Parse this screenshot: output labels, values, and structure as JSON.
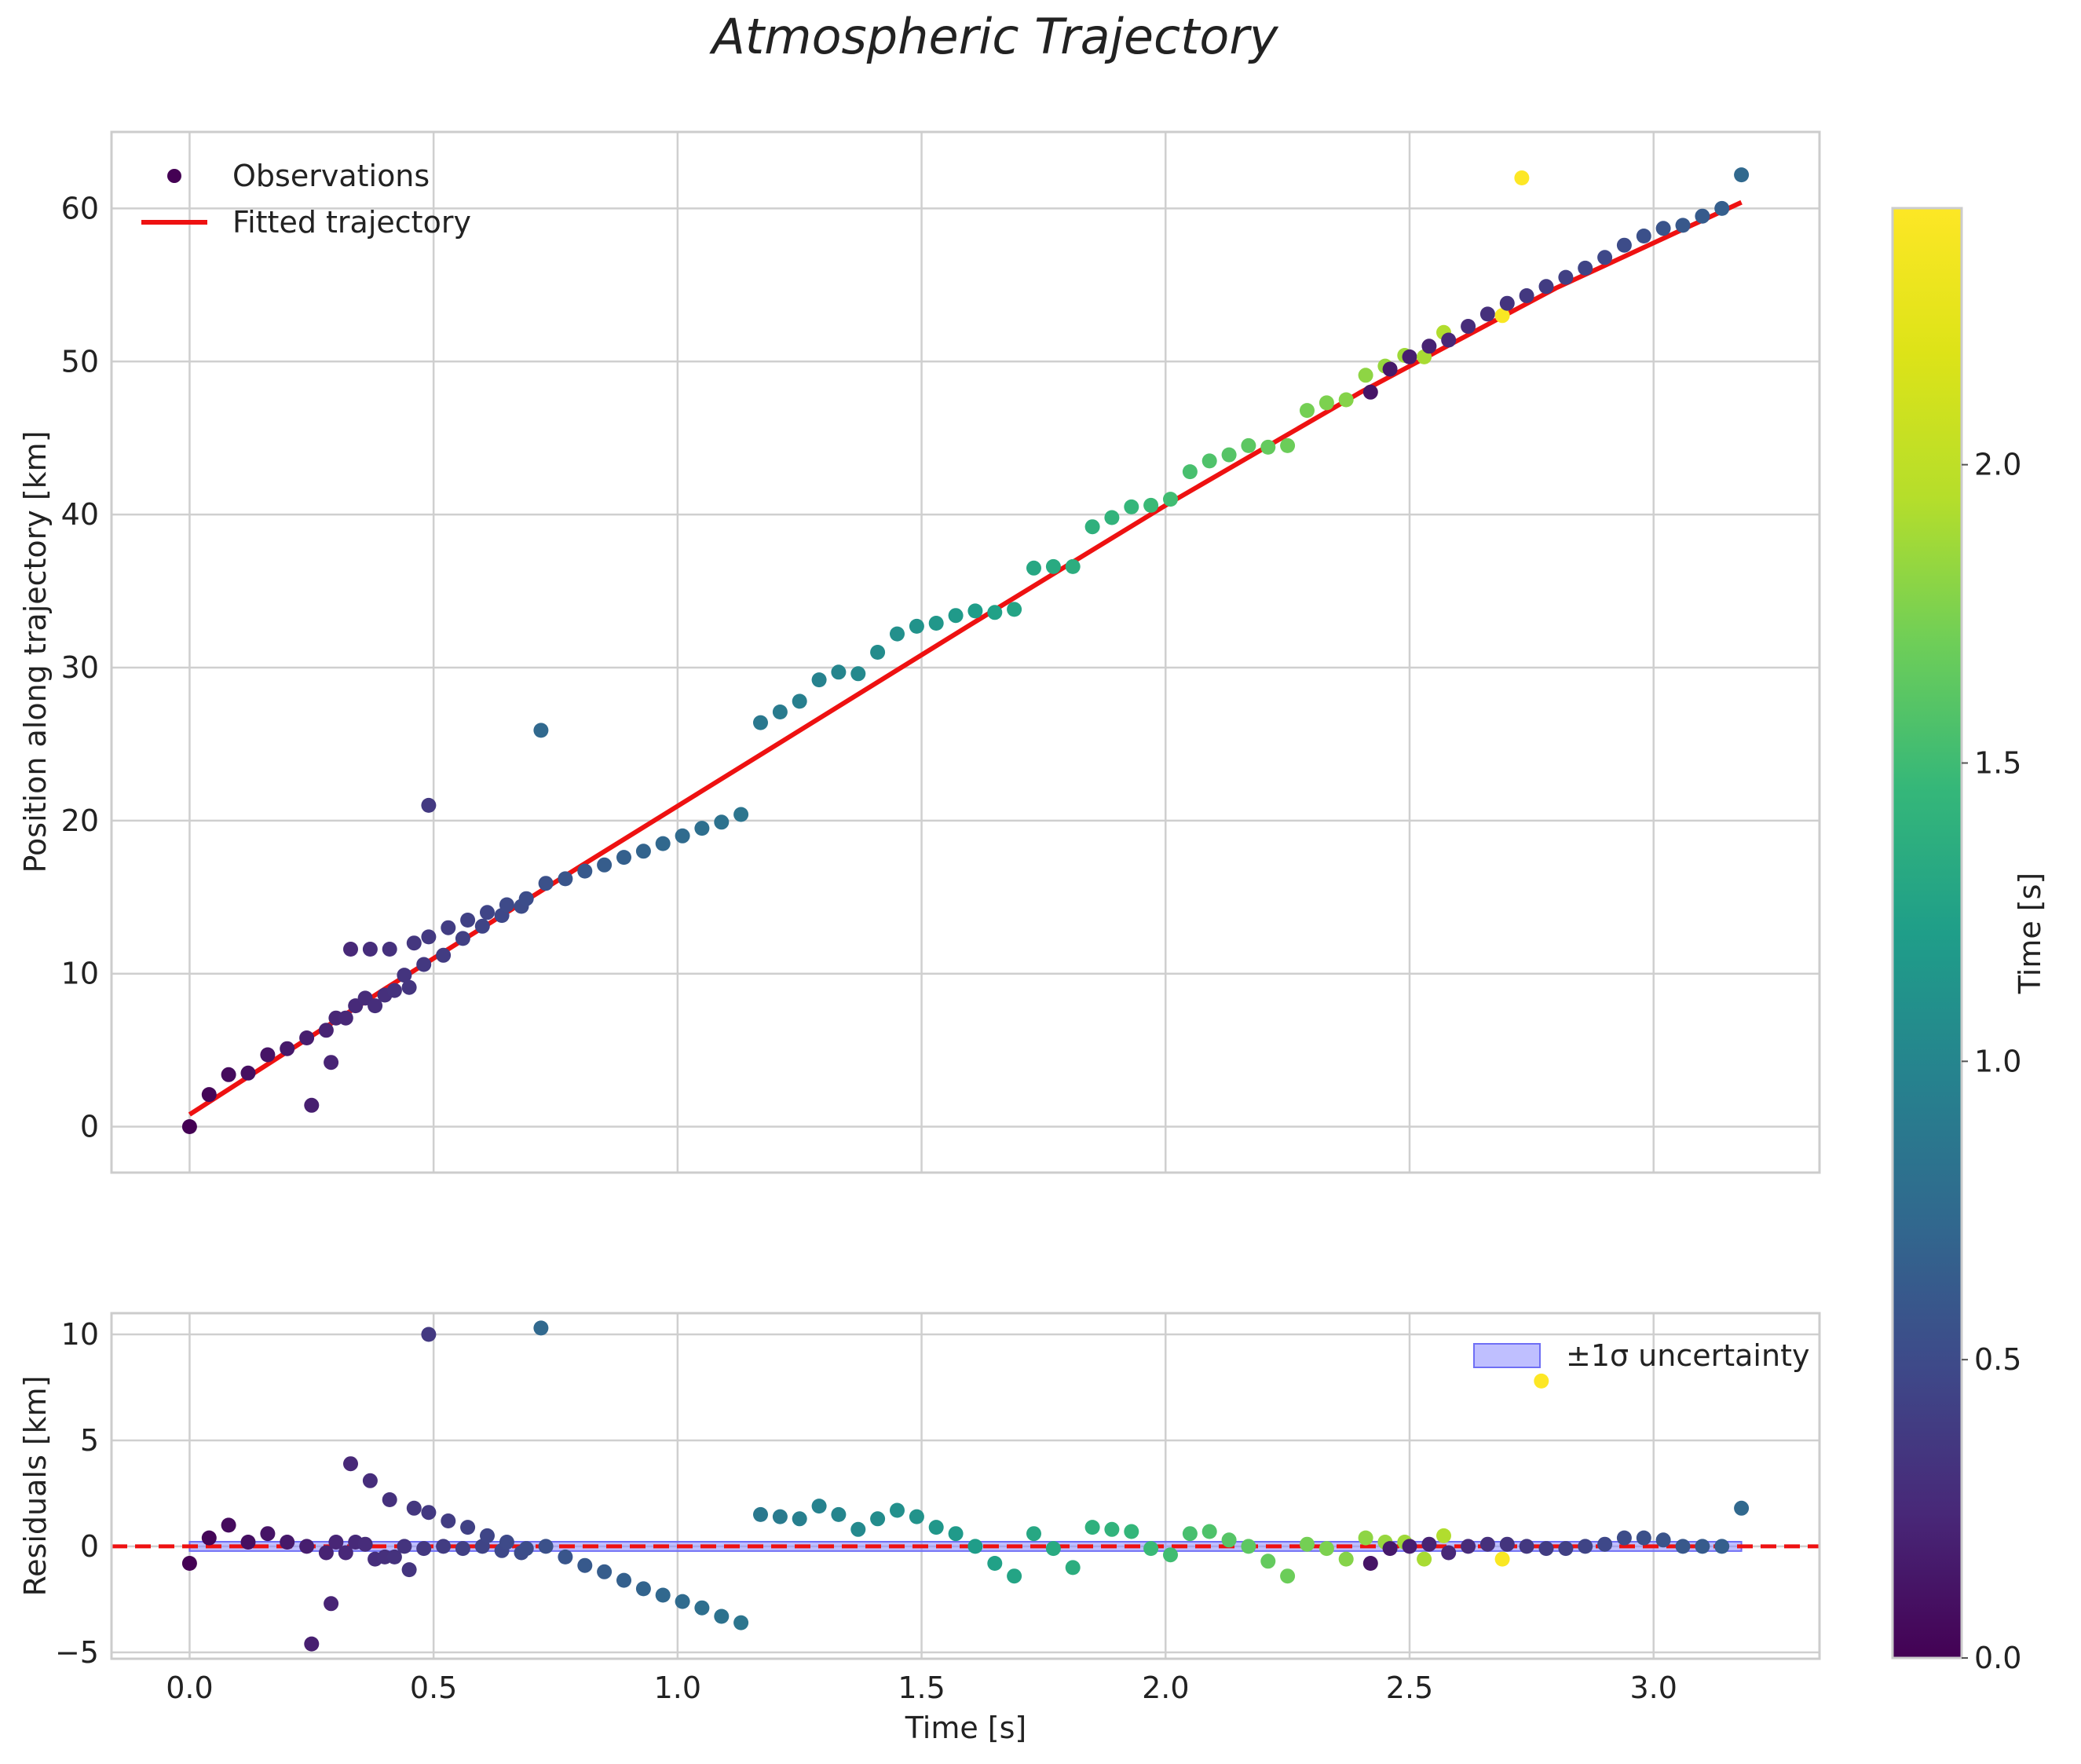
{
  "chart_data": {
    "type": "scatter",
    "title": "Atmospheric Trajectory",
    "xlabel": "Time [s]",
    "colorbar": {
      "label": "Time [s]",
      "range": [
        0,
        2.43
      ],
      "ticks": [
        0.0,
        0.5,
        1.0,
        1.5,
        2.0
      ],
      "tick_labels": [
        "0.0",
        "0.5",
        "1.0",
        "1.5",
        "2.0"
      ],
      "colormap": "viridis"
    },
    "panels": [
      {
        "id": "main",
        "ylabel": "Position along trajectory [km]",
        "xlim": [
          -0.16,
          3.34
        ],
        "ylim": [
          -3,
          65
        ],
        "xticks": [
          0.0,
          0.5,
          1.0,
          1.5,
          2.0,
          2.5,
          3.0
        ],
        "yticks": [
          0,
          10,
          20,
          30,
          40,
          50,
          60
        ],
        "grid": true,
        "legend": {
          "position": "top-left",
          "entries": [
            "Observations",
            "Fitted trajectory"
          ]
        },
        "fit_line": {
          "name": "Fitted trajectory",
          "color": "#ee1111",
          "x": [
            0.0,
            0.4,
            0.8,
            1.2,
            1.6,
            2.0,
            2.4,
            2.8,
            3.18
          ],
          "y": [
            0.8,
            9.0,
            17.0,
            24.9,
            32.8,
            40.6,
            48.0,
            54.8,
            60.4
          ]
        },
        "series_name": "Observations",
        "points": [
          [
            0.0,
            0.0,
            0.0
          ],
          [
            0.04,
            2.1,
            0.03
          ],
          [
            0.08,
            3.4,
            0.06
          ],
          [
            0.12,
            3.5,
            0.09
          ],
          [
            0.16,
            4.7,
            0.12
          ],
          [
            0.2,
            5.1,
            0.15
          ],
          [
            0.24,
            5.8,
            0.18
          ],
          [
            0.25,
            1.4,
            0.19
          ],
          [
            0.28,
            6.3,
            0.21
          ],
          [
            0.29,
            4.2,
            0.22
          ],
          [
            0.3,
            7.1,
            0.23
          ],
          [
            0.32,
            7.1,
            0.24
          ],
          [
            0.33,
            11.6,
            0.25
          ],
          [
            0.34,
            7.9,
            0.26
          ],
          [
            0.36,
            8.4,
            0.27
          ],
          [
            0.37,
            11.6,
            0.28
          ],
          [
            0.38,
            7.9,
            0.29
          ],
          [
            0.4,
            8.6,
            0.3
          ],
          [
            0.41,
            11.6,
            0.31
          ],
          [
            0.42,
            8.9,
            0.32
          ],
          [
            0.44,
            9.9,
            0.33
          ],
          [
            0.45,
            9.1,
            0.34
          ],
          [
            0.46,
            12.0,
            0.35
          ],
          [
            0.48,
            10.6,
            0.36
          ],
          [
            0.49,
            12.4,
            0.37
          ],
          [
            0.49,
            21.0,
            0.37
          ],
          [
            0.52,
            11.2,
            0.39
          ],
          [
            0.53,
            13.0,
            0.4
          ],
          [
            0.56,
            12.3,
            0.42
          ],
          [
            0.57,
            13.5,
            0.43
          ],
          [
            0.6,
            13.1,
            0.45
          ],
          [
            0.61,
            14.0,
            0.46
          ],
          [
            0.64,
            13.8,
            0.48
          ],
          [
            0.65,
            14.5,
            0.49
          ],
          [
            0.68,
            14.4,
            0.51
          ],
          [
            0.69,
            14.9,
            0.52
          ],
          [
            0.72,
            25.9,
            0.74
          ],
          [
            0.73,
            15.9,
            0.55
          ],
          [
            0.77,
            16.2,
            0.58
          ],
          [
            0.81,
            16.7,
            0.61
          ],
          [
            0.85,
            17.1,
            0.64
          ],
          [
            0.89,
            17.6,
            0.67
          ],
          [
            0.93,
            18.0,
            0.7
          ],
          [
            0.97,
            18.5,
            0.73
          ],
          [
            1.01,
            19.0,
            0.76
          ],
          [
            1.05,
            19.5,
            0.79
          ],
          [
            1.09,
            19.9,
            0.82
          ],
          [
            1.13,
            20.4,
            0.85
          ],
          [
            1.17,
            26.4,
            0.88
          ],
          [
            1.21,
            27.1,
            0.91
          ],
          [
            1.25,
            27.8,
            0.94
          ],
          [
            1.29,
            29.2,
            0.97
          ],
          [
            1.33,
            29.7,
            1.0
          ],
          [
            1.37,
            29.6,
            1.03
          ],
          [
            1.41,
            31.0,
            1.06
          ],
          [
            1.45,
            32.2,
            1.09
          ],
          [
            1.49,
            32.7,
            1.12
          ],
          [
            1.53,
            32.9,
            1.15
          ],
          [
            1.57,
            33.4,
            1.18
          ],
          [
            1.61,
            33.7,
            1.21
          ],
          [
            1.65,
            33.6,
            1.24
          ],
          [
            1.69,
            33.8,
            1.27
          ],
          [
            1.73,
            36.5,
            1.3
          ],
          [
            1.77,
            36.6,
            1.33
          ],
          [
            1.81,
            36.6,
            1.36
          ],
          [
            1.85,
            39.2,
            1.39
          ],
          [
            1.89,
            39.8,
            1.42
          ],
          [
            1.93,
            40.5,
            1.45
          ],
          [
            1.97,
            40.6,
            1.48
          ],
          [
            2.01,
            41.0,
            1.51
          ],
          [
            2.05,
            42.8,
            1.54
          ],
          [
            2.09,
            43.5,
            1.57
          ],
          [
            2.13,
            43.9,
            1.6
          ],
          [
            2.17,
            44.5,
            1.63
          ],
          [
            2.21,
            44.4,
            1.66
          ],
          [
            2.25,
            44.5,
            1.69
          ],
          [
            2.29,
            46.8,
            1.72
          ],
          [
            2.33,
            47.3,
            1.75
          ],
          [
            2.37,
            47.5,
            1.78
          ],
          [
            2.41,
            49.1,
            1.81
          ],
          [
            2.42,
            48.0,
            0.12
          ],
          [
            2.45,
            49.7,
            1.84
          ],
          [
            2.46,
            49.5,
            0.15
          ],
          [
            2.49,
            50.4,
            1.87
          ],
          [
            2.5,
            50.3,
            0.18
          ],
          [
            2.53,
            50.3,
            1.9
          ],
          [
            2.54,
            51.0,
            0.21
          ],
          [
            2.57,
            51.9,
            1.93
          ],
          [
            2.58,
            51.4,
            0.24
          ],
          [
            2.62,
            52.3,
            0.27
          ],
          [
            2.66,
            53.1,
            0.3
          ],
          [
            2.69,
            53.0,
            2.4
          ],
          [
            2.7,
            53.8,
            0.33
          ],
          [
            2.73,
            62.0,
            2.43
          ],
          [
            2.74,
            54.3,
            0.36
          ],
          [
            2.78,
            54.9,
            0.39
          ],
          [
            2.82,
            55.5,
            0.42
          ],
          [
            2.86,
            56.1,
            0.45
          ],
          [
            2.9,
            56.8,
            0.48
          ],
          [
            2.94,
            57.6,
            0.51
          ],
          [
            2.98,
            58.2,
            0.54
          ],
          [
            3.02,
            58.7,
            0.57
          ],
          [
            3.06,
            58.9,
            0.6
          ],
          [
            3.1,
            59.5,
            0.63
          ],
          [
            3.14,
            60.0,
            0.66
          ],
          [
            3.18,
            62.2,
            0.74
          ]
        ]
      },
      {
        "id": "residuals",
        "ylabel": "Residuals [km]",
        "xlim": [
          -0.16,
          3.34
        ],
        "ylim": [
          -5.3,
          11.0
        ],
        "xticks": [
          0.0,
          0.5,
          1.0,
          1.5,
          2.0,
          2.5,
          3.0
        ],
        "xtick_labels": [
          "0.0",
          "0.5",
          "1.0",
          "1.5",
          "2.0",
          "2.5",
          "3.0"
        ],
        "yticks": [
          -5,
          0,
          5,
          10
        ],
        "ytick_labels": [
          "−5",
          "0",
          "5",
          "10"
        ],
        "grid": true,
        "zero_line": {
          "y": 0,
          "color": "#ee1111",
          "style": "dashed"
        },
        "band": {
          "name": "±1σ uncertainty",
          "x": [
            0.0,
            3.18
          ],
          "y_low": -0.22,
          "y_high": 0.22,
          "color": "#8a8aff"
        },
        "legend": {
          "position": "top-right",
          "entries": [
            "±1σ uncertainty"
          ]
        },
        "points": [
          [
            0.0,
            -0.8,
            0.0
          ],
          [
            0.04,
            0.4,
            0.03
          ],
          [
            0.08,
            1.0,
            0.06
          ],
          [
            0.12,
            0.2,
            0.09
          ],
          [
            0.16,
            0.6,
            0.12
          ],
          [
            0.2,
            0.2,
            0.15
          ],
          [
            0.24,
            0.0,
            0.18
          ],
          [
            0.25,
            -4.6,
            0.19
          ],
          [
            0.28,
            -0.3,
            0.21
          ],
          [
            0.29,
            -2.7,
            0.22
          ],
          [
            0.3,
            0.2,
            0.23
          ],
          [
            0.32,
            -0.3,
            0.24
          ],
          [
            0.33,
            3.9,
            0.25
          ],
          [
            0.34,
            0.2,
            0.26
          ],
          [
            0.36,
            0.1,
            0.27
          ],
          [
            0.37,
            3.1,
            0.28
          ],
          [
            0.38,
            -0.6,
            0.29
          ],
          [
            0.4,
            -0.5,
            0.3
          ],
          [
            0.41,
            2.2,
            0.31
          ],
          [
            0.42,
            -0.5,
            0.32
          ],
          [
            0.44,
            0.0,
            0.33
          ],
          [
            0.45,
            -1.1,
            0.34
          ],
          [
            0.46,
            1.8,
            0.35
          ],
          [
            0.48,
            -0.1,
            0.36
          ],
          [
            0.49,
            1.6,
            0.37
          ],
          [
            0.49,
            10.0,
            0.37
          ],
          [
            0.52,
            0.0,
            0.39
          ],
          [
            0.53,
            1.2,
            0.4
          ],
          [
            0.56,
            -0.1,
            0.42
          ],
          [
            0.57,
            0.9,
            0.43
          ],
          [
            0.6,
            0.0,
            0.45
          ],
          [
            0.61,
            0.5,
            0.46
          ],
          [
            0.64,
            -0.2,
            0.48
          ],
          [
            0.65,
            0.2,
            0.49
          ],
          [
            0.68,
            -0.3,
            0.51
          ],
          [
            0.69,
            -0.1,
            0.52
          ],
          [
            0.72,
            10.3,
            0.74
          ],
          [
            0.73,
            0.0,
            0.55
          ],
          [
            0.77,
            -0.5,
            0.58
          ],
          [
            0.81,
            -0.9,
            0.61
          ],
          [
            0.85,
            -1.2,
            0.64
          ],
          [
            0.89,
            -1.6,
            0.67
          ],
          [
            0.93,
            -2.0,
            0.7
          ],
          [
            0.97,
            -2.3,
            0.73
          ],
          [
            1.01,
            -2.6,
            0.76
          ],
          [
            1.05,
            -2.9,
            0.79
          ],
          [
            1.09,
            -3.3,
            0.82
          ],
          [
            1.13,
            -3.6,
            0.85
          ],
          [
            1.17,
            1.5,
            0.88
          ],
          [
            1.21,
            1.4,
            0.91
          ],
          [
            1.25,
            1.3,
            0.94
          ],
          [
            1.29,
            1.9,
            0.97
          ],
          [
            1.33,
            1.5,
            1.0
          ],
          [
            1.37,
            0.8,
            1.03
          ],
          [
            1.41,
            1.3,
            1.06
          ],
          [
            1.45,
            1.7,
            1.09
          ],
          [
            1.49,
            1.4,
            1.12
          ],
          [
            1.53,
            0.9,
            1.15
          ],
          [
            1.57,
            0.6,
            1.18
          ],
          [
            1.61,
            0.0,
            1.21
          ],
          [
            1.65,
            -0.8,
            1.24
          ],
          [
            1.69,
            -1.4,
            1.27
          ],
          [
            1.73,
            0.6,
            1.3
          ],
          [
            1.77,
            -0.1,
            1.33
          ],
          [
            1.81,
            -1.0,
            1.36
          ],
          [
            1.85,
            0.9,
            1.39
          ],
          [
            1.89,
            0.8,
            1.42
          ],
          [
            1.93,
            0.7,
            1.45
          ],
          [
            1.97,
            -0.1,
            1.48
          ],
          [
            2.01,
            -0.4,
            1.51
          ],
          [
            2.05,
            0.6,
            1.54
          ],
          [
            2.09,
            0.7,
            1.57
          ],
          [
            2.13,
            0.3,
            1.6
          ],
          [
            2.17,
            0.0,
            1.63
          ],
          [
            2.21,
            -0.7,
            1.66
          ],
          [
            2.25,
            -1.4,
            1.69
          ],
          [
            2.29,
            0.1,
            1.72
          ],
          [
            2.33,
            -0.1,
            1.75
          ],
          [
            2.37,
            -0.6,
            1.78
          ],
          [
            2.41,
            0.4,
            1.81
          ],
          [
            2.42,
            -0.8,
            0.12
          ],
          [
            2.45,
            0.2,
            1.84
          ],
          [
            2.46,
            -0.1,
            0.15
          ],
          [
            2.49,
            0.2,
            1.87
          ],
          [
            2.5,
            0.0,
            0.18
          ],
          [
            2.53,
            -0.6,
            1.9
          ],
          [
            2.54,
            0.1,
            0.21
          ],
          [
            2.57,
            0.5,
            1.93
          ],
          [
            2.58,
            -0.3,
            0.24
          ],
          [
            2.62,
            0.0,
            0.27
          ],
          [
            2.66,
            0.1,
            0.3
          ],
          [
            2.69,
            -0.6,
            2.4
          ],
          [
            2.7,
            0.1,
            0.33
          ],
          [
            2.74,
            0.0,
            0.36
          ],
          [
            2.78,
            -0.1,
            0.39
          ],
          [
            2.82,
            -0.1,
            0.42
          ],
          [
            2.86,
            0.0,
            0.45
          ],
          [
            2.9,
            0.1,
            0.48
          ],
          [
            2.94,
            0.4,
            0.51
          ],
          [
            2.98,
            0.4,
            0.54
          ],
          [
            3.02,
            0.3,
            0.57
          ],
          [
            3.06,
            0.0,
            0.6
          ],
          [
            3.1,
            0.0,
            0.63
          ],
          [
            3.14,
            0.0,
            0.66
          ],
          [
            3.18,
            1.8,
            0.74
          ],
          [
            2.77,
            7.8,
            2.43
          ]
        ]
      }
    ]
  }
}
